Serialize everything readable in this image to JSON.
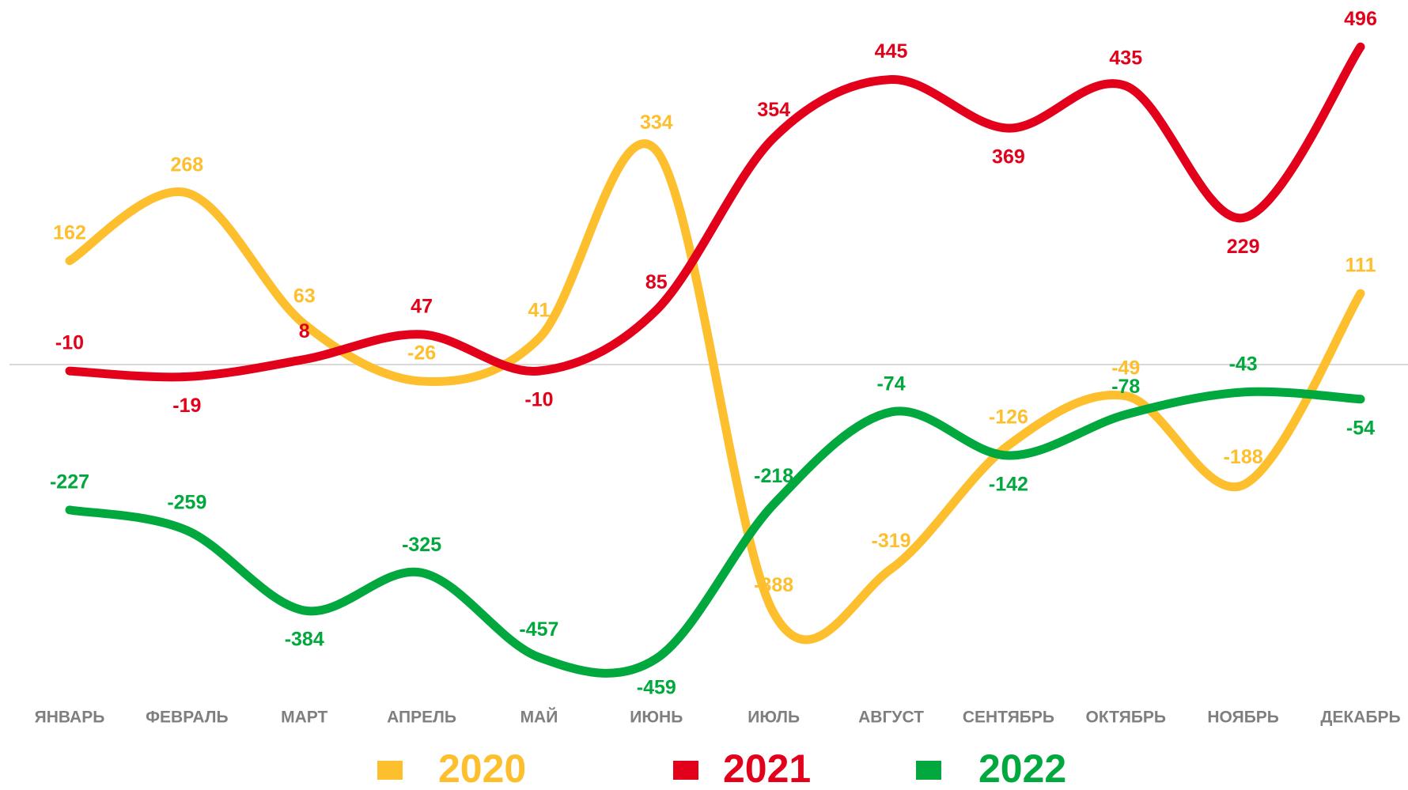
{
  "chart_data": {
    "type": "line",
    "categories": [
      "ЯНВАРЬ",
      "ФЕВРАЛЬ",
      "МАРТ",
      "АПРЕЛЬ",
      "МАЙ",
      "ИЮНЬ",
      "ИЮЛЬ",
      "АВГУСТ",
      "СЕНТЯБРЬ",
      "ОКТЯБРЬ",
      "НОЯБРЬ",
      "ДЕКАБРЬ"
    ],
    "series": [
      {
        "name": "2020",
        "color": "#fdbf2d",
        "values": [
          162,
          268,
          63,
          -26,
          41,
          334,
          -388,
          -319,
          -126,
          -49,
          -188,
          111
        ]
      },
      {
        "name": "2021",
        "color": "#e2001a",
        "values": [
          -10,
          -19,
          8,
          47,
          -10,
          85,
          354,
          445,
          369,
          435,
          229,
          496
        ]
      },
      {
        "name": "2022",
        "color": "#00a83d",
        "values": [
          -227,
          -259,
          -384,
          -325,
          -457,
          -459,
          -218,
          -74,
          -142,
          -78,
          -43,
          -54
        ]
      }
    ],
    "ylim": [
      -500,
      550
    ]
  }
}
